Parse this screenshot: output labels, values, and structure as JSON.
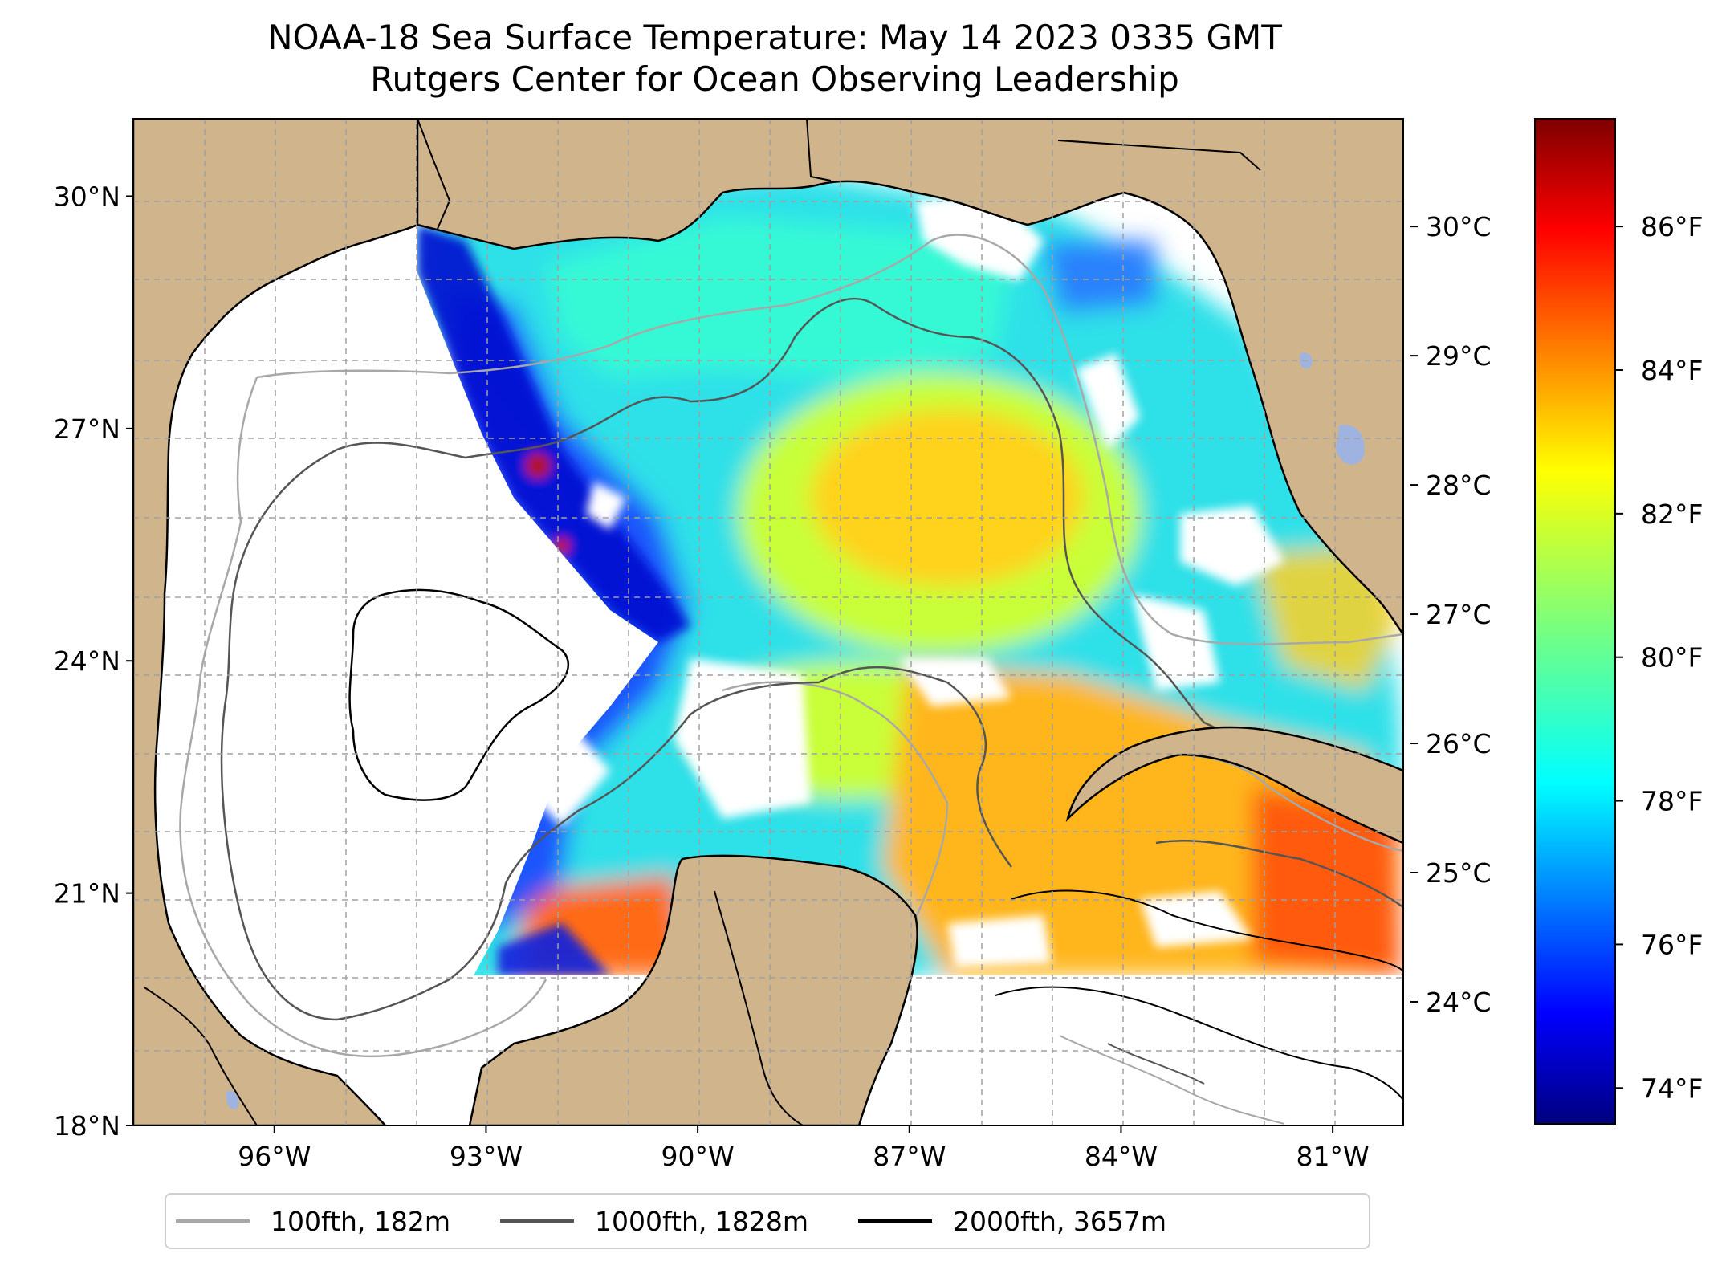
{
  "title": {
    "line1": "NOAA-18 Sea Surface Temperature: May 14 2023 0335 GMT",
    "line2": "Rutgers Center for Ocean Observing Leadership"
  },
  "map": {
    "lon_range": [
      -98,
      -80
    ],
    "lat_range": [
      18,
      31
    ],
    "lat_ticks": [
      {
        "value": 30,
        "label": "30°N"
      },
      {
        "value": 27,
        "label": "27°N"
      },
      {
        "value": 24,
        "label": "24°N"
      },
      {
        "value": 21,
        "label": "21°N"
      },
      {
        "value": 18,
        "label": "18°N"
      }
    ],
    "lon_ticks": [
      {
        "value": -96,
        "label": "96°W"
      },
      {
        "value": -93,
        "label": "93°W"
      },
      {
        "value": -90,
        "label": "90°W"
      },
      {
        "value": -87,
        "label": "87°W"
      },
      {
        "value": -84,
        "label": "84°W"
      },
      {
        "value": -81,
        "label": "81°W"
      }
    ],
    "gridlines": true,
    "land_color": "#d0b48c",
    "lake_color": "#9fb3e0",
    "no_data_color": "#ffffff"
  },
  "colorbar": {
    "colormap": "jet",
    "celsius_ticks": [
      {
        "value": 30,
        "label": "30°C"
      },
      {
        "value": 29,
        "label": "29°C"
      },
      {
        "value": 28,
        "label": "28°C"
      },
      {
        "value": 27,
        "label": "27°C"
      },
      {
        "value": 26,
        "label": "26°C"
      },
      {
        "value": 25,
        "label": "25°C"
      },
      {
        "value": 24,
        "label": "24°C"
      }
    ],
    "fahrenheit_ticks": [
      {
        "value": 86,
        "label": "86°F"
      },
      {
        "value": 84,
        "label": "84°F"
      },
      {
        "value": 82,
        "label": "82°F"
      },
      {
        "value": 80,
        "label": "80°F"
      },
      {
        "value": 78,
        "label": "78°F"
      },
      {
        "value": 76,
        "label": "76°F"
      },
      {
        "value": 74,
        "label": "74°F"
      }
    ],
    "range_f": [
      73.5,
      87.5
    ]
  },
  "legend": {
    "items": [
      {
        "label": "100fth, 182m",
        "color": "#a8a8a8"
      },
      {
        "label": "1000fth, 1828m",
        "color": "#555555"
      },
      {
        "label": "2000fth, 3657m",
        "color": "#000000"
      }
    ]
  }
}
